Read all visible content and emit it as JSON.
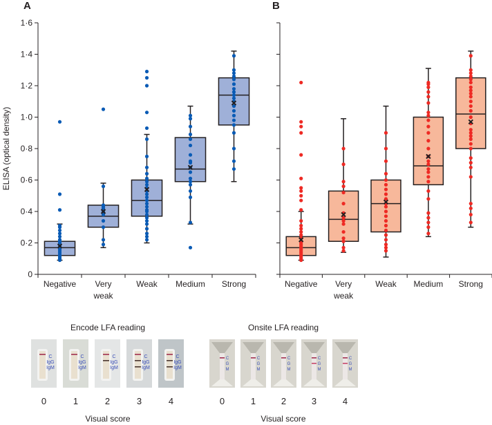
{
  "chart_data": [
    {
      "panel": "A",
      "type": "box",
      "ylabel": "ELISA (optical density)",
      "ylim": [
        0,
        1.6
      ],
      "yticks": [
        "0",
        "0·2",
        "0·4",
        "0·6",
        "0·8",
        "1·0",
        "1·2",
        "1·4",
        "1·6"
      ],
      "categories": [
        [
          "Negative"
        ],
        [
          "Very",
          "weak"
        ],
        [
          "Weak"
        ],
        [
          "Medium"
        ],
        [
          "Strong"
        ]
      ],
      "box_color": "#9fb0d8",
      "point_color": "#0a5bb5",
      "boxes": [
        {
          "whisker_low": 0.09,
          "q1": 0.12,
          "median": 0.17,
          "q3": 0.21,
          "whisker_high": 0.32,
          "mean": 0.18,
          "points": [
            0.09,
            0.1,
            0.11,
            0.12,
            0.13,
            0.14,
            0.15,
            0.16,
            0.17,
            0.18,
            0.19,
            0.2,
            0.21,
            0.22,
            0.24,
            0.26,
            0.28,
            0.3,
            0.31,
            0.41,
            0.51,
            0.97
          ]
        },
        {
          "whisker_low": 0.17,
          "q1": 0.3,
          "median": 0.37,
          "q3": 0.44,
          "whisker_high": 0.58,
          "mean": 0.4,
          "points": [
            0.19,
            0.22,
            0.3,
            0.34,
            0.38,
            0.4,
            0.42,
            0.43,
            0.44,
            0.56,
            1.05
          ]
        },
        {
          "whisker_low": 0.2,
          "q1": 0.37,
          "median": 0.47,
          "q3": 0.6,
          "whisker_high": 0.89,
          "mean": 0.54,
          "points": [
            0.22,
            0.24,
            0.26,
            0.29,
            0.32,
            0.34,
            0.36,
            0.38,
            0.4,
            0.41,
            0.43,
            0.45,
            0.47,
            0.49,
            0.51,
            0.53,
            0.55,
            0.57,
            0.59,
            0.61,
            0.64,
            0.68,
            0.75,
            0.86,
            0.93,
            1.03,
            1.2,
            1.25,
            1.29
          ]
        },
        {
          "whisker_low": 0.32,
          "q1": 0.59,
          "median": 0.67,
          "q3": 0.87,
          "whisker_high": 1.07,
          "mean": 0.68,
          "points": [
            0.17,
            0.33,
            0.49,
            0.53,
            0.57,
            0.59,
            0.61,
            0.65,
            0.68,
            0.71,
            0.72,
            0.76,
            0.82,
            0.86,
            0.89,
            0.94,
            0.99,
            1.01
          ]
        },
        {
          "whisker_low": 0.59,
          "q1": 0.95,
          "median": 1.14,
          "q3": 1.25,
          "whisker_high": 1.42,
          "mean": 1.09,
          "points": [
            0.67,
            0.72,
            0.8,
            0.9,
            0.95,
            0.98,
            1.01,
            1.04,
            1.07,
            1.1,
            1.12,
            1.14,
            1.16,
            1.18,
            1.21,
            1.24,
            1.26,
            1.28,
            1.3,
            1.39
          ]
        }
      ]
    },
    {
      "panel": "B",
      "type": "box",
      "ylim": [
        0,
        1.6
      ],
      "categories": [
        [
          "Negative"
        ],
        [
          "Very",
          "weak"
        ],
        [
          "Weak"
        ],
        [
          "Medium"
        ],
        [
          "Strong"
        ]
      ],
      "box_color": "#f7b89b",
      "point_color": "#ee2a24",
      "boxes": [
        {
          "whisker_low": 0.09,
          "q1": 0.12,
          "median": 0.17,
          "q3": 0.24,
          "whisker_high": 0.4,
          "mean": 0.22,
          "points": [
            0.09,
            0.1,
            0.11,
            0.12,
            0.13,
            0.14,
            0.15,
            0.16,
            0.17,
            0.18,
            0.19,
            0.2,
            0.21,
            0.23,
            0.25,
            0.27,
            0.29,
            0.31,
            0.34,
            0.41,
            0.47,
            0.5,
            0.53,
            0.55,
            0.61,
            0.76,
            0.9,
            0.94,
            0.97,
            1.22
          ]
        },
        {
          "whisker_low": 0.14,
          "q1": 0.21,
          "median": 0.35,
          "q3": 0.53,
          "whisker_high": 0.99,
          "mean": 0.38,
          "points": [
            0.15,
            0.17,
            0.21,
            0.23,
            0.27,
            0.32,
            0.34,
            0.36,
            0.39,
            0.45,
            0.52,
            0.56,
            0.59,
            0.7,
            0.8
          ]
        },
        {
          "whisker_low": 0.11,
          "q1": 0.27,
          "median": 0.45,
          "q3": 0.6,
          "whisker_high": 1.07,
          "mean": 0.46,
          "points": [
            0.15,
            0.17,
            0.19,
            0.22,
            0.25,
            0.28,
            0.31,
            0.34,
            0.37,
            0.4,
            0.43,
            0.45,
            0.48,
            0.51,
            0.54,
            0.57,
            0.6,
            0.64,
            0.72,
            0.8,
            0.9
          ]
        },
        {
          "whisker_low": 0.24,
          "q1": 0.57,
          "median": 0.69,
          "q3": 1.0,
          "whisker_high": 1.31,
          "mean": 0.75,
          "points": [
            0.26,
            0.3,
            0.33,
            0.36,
            0.39,
            0.48,
            0.53,
            0.59,
            0.62,
            0.65,
            0.67,
            0.7,
            0.72,
            0.75,
            0.8,
            0.85,
            0.9,
            0.94,
            0.98,
            1.01,
            1.03,
            1.09,
            1.13,
            1.16,
            1.19,
            1.21,
            1.22
          ]
        },
        {
          "whisker_low": 0.3,
          "q1": 0.8,
          "median": 1.02,
          "q3": 1.25,
          "whisker_high": 1.42,
          "mean": 0.97,
          "points": [
            0.33,
            0.38,
            0.42,
            0.45,
            0.62,
            0.68,
            0.71,
            0.74,
            0.8,
            0.83,
            0.86,
            0.88,
            0.9,
            0.92,
            0.96,
            1.0,
            1.04,
            1.07,
            1.1,
            1.13,
            1.15,
            1.17,
            1.19,
            1.22,
            1.24,
            1.26,
            1.28,
            1.3,
            1.39
          ]
        }
      ]
    }
  ],
  "panels": {
    "A": {
      "label": "A",
      "lfa_title": "Encode LFA reading",
      "scores": [
        "0",
        "1",
        "2",
        "3",
        "4"
      ],
      "xlabel": "Visual score",
      "strip_labels": [
        "C",
        "IgG",
        "IgM"
      ]
    },
    "B": {
      "label": "B",
      "lfa_title": "Onsite LFA reading",
      "scores": [
        "0",
        "1",
        "2",
        "3",
        "4"
      ],
      "xlabel": "Visual score",
      "strip_labels": [
        "C",
        "G",
        "M"
      ]
    }
  }
}
